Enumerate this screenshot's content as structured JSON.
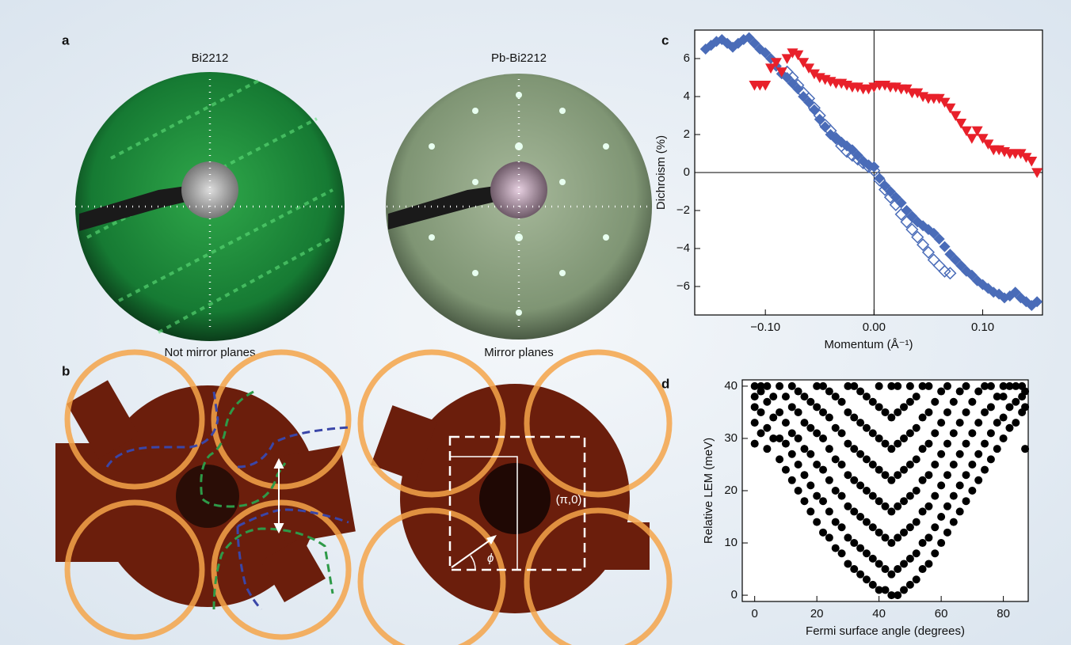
{
  "panels": {
    "a": {
      "label": "a",
      "left_title": "Bi2212",
      "right_title": "Pb-Bi2212",
      "left_caption": "Not mirror planes",
      "right_caption": "Mirror planes"
    },
    "b": {
      "label": "b",
      "point_label": "(π,0)",
      "angle_label": "ϕ"
    },
    "c": {
      "label": "c"
    },
    "d": {
      "label": "d"
    }
  },
  "chart_data": [
    {
      "type": "scatter",
      "x_label": "Momentum (Å⁻¹)",
      "y_label": "Dichroism (%)",
      "xlim": [
        -0.165,
        0.155
      ],
      "ylim": [
        -7.5,
        7.5
      ],
      "xticks": [
        {
          "value": -0.1,
          "label": "−0.10"
        },
        {
          "value": 0,
          "label": "0.00"
        },
        {
          "value": 0.1,
          "label": "0.10"
        }
      ],
      "yticks": [
        {
          "value": -6,
          "label": "−6"
        },
        {
          "value": -4,
          "label": "−4"
        },
        {
          "value": -2,
          "label": "−2"
        },
        0,
        2,
        4,
        6
      ],
      "zero_lines": true,
      "series": [
        {
          "color": "#4a6cb8",
          "marker": "diamond",
          "x": [
            -0.155,
            -0.15,
            -0.145,
            -0.14,
            -0.135,
            -0.13,
            -0.125,
            -0.12,
            -0.115,
            -0.11,
            -0.105,
            -0.1,
            -0.095,
            -0.09,
            -0.085,
            -0.08,
            -0.075,
            -0.07,
            -0.065,
            -0.06,
            -0.055,
            -0.05,
            -0.045,
            -0.04,
            -0.035,
            -0.03,
            -0.025,
            -0.02,
            -0.015,
            -0.01,
            -0.005,
            0,
            0.005,
            0.01,
            0.015,
            0.02,
            0.025,
            0.03,
            0.035,
            0.04,
            0.045,
            0.05,
            0.055,
            0.06,
            0.065,
            0.07,
            0.075,
            0.08,
            0.085,
            0.09,
            0.095,
            0.1,
            0.105,
            0.11,
            0.115,
            0.12,
            0.125,
            0.13,
            0.135,
            0.14,
            0.145,
            0.15
          ],
          "values": [
            6.5,
            6.7,
            6.9,
            7.0,
            6.8,
            6.6,
            6.8,
            7.0,
            7.1,
            6.8,
            6.5,
            6.3,
            6.0,
            5.6,
            5.2,
            5.0,
            4.7,
            4.4,
            4.0,
            3.7,
            3.3,
            2.8,
            2.4,
            2.0,
            1.8,
            1.6,
            1.4,
            1.2,
            0.9,
            0.6,
            0.4,
            0.3,
            -0.3,
            -0.7,
            -1.0,
            -1.3,
            -1.6,
            -2.0,
            -2.3,
            -2.6,
            -2.8,
            -3.0,
            -3.2,
            -3.5,
            -3.9,
            -4.3,
            -4.6,
            -4.9,
            -5.2,
            -5.4,
            -5.7,
            -5.9,
            -6.1,
            -6.3,
            -6.4,
            -6.6,
            -6.5,
            -6.3,
            -6.6,
            -6.8,
            -7.0,
            -6.8
          ]
        },
        {
          "color": "#4a6cb8",
          "marker": "diamond-open",
          "x": [
            -0.08,
            -0.075,
            -0.07,
            -0.065,
            -0.06,
            -0.055,
            -0.05,
            -0.045,
            -0.04,
            -0.035,
            -0.03,
            -0.025,
            -0.02,
            -0.015,
            -0.01,
            -0.005,
            0,
            0.005,
            0.01,
            0.015,
            0.02,
            0.025,
            0.03,
            0.035,
            0.04,
            0.045,
            0.05,
            0.055,
            0.06,
            0.065,
            0.07
          ],
          "values": [
            5.3,
            5.0,
            4.6,
            4.2,
            3.9,
            3.4,
            3.0,
            2.5,
            2.2,
            1.8,
            1.4,
            1.1,
            0.9,
            0.7,
            0.5,
            0.3,
            0.1,
            -0.4,
            -0.9,
            -1.3,
            -1.7,
            -2.2,
            -2.6,
            -3.0,
            -3.4,
            -3.8,
            -4.2,
            -4.6,
            -4.9,
            -5.2,
            -5.3
          ]
        },
        {
          "color": "#e8202a",
          "marker": "triangle-down",
          "x": [
            -0.11,
            -0.105,
            -0.1,
            -0.095,
            -0.09,
            -0.085,
            -0.08,
            -0.075,
            -0.07,
            -0.065,
            -0.06,
            -0.055,
            -0.05,
            -0.045,
            -0.04,
            -0.035,
            -0.03,
            -0.025,
            -0.02,
            -0.015,
            -0.01,
            -0.005,
            0,
            0.005,
            0.01,
            0.015,
            0.02,
            0.025,
            0.03,
            0.035,
            0.04,
            0.045,
            0.05,
            0.055,
            0.06,
            0.065,
            0.07,
            0.075,
            0.08,
            0.085,
            0.09,
            0.095,
            0.1,
            0.105,
            0.11,
            0.115,
            0.12,
            0.125,
            0.13,
            0.135,
            0.14,
            0.145,
            0.15
          ],
          "values": [
            4.6,
            4.6,
            4.6,
            5.5,
            5.8,
            5.3,
            6.0,
            6.3,
            6.2,
            5.8,
            5.5,
            5.2,
            5.0,
            4.9,
            4.8,
            4.7,
            4.7,
            4.6,
            4.5,
            4.5,
            4.4,
            4.4,
            4.5,
            4.6,
            4.6,
            4.5,
            4.5,
            4.4,
            4.4,
            4.2,
            4.2,
            4.0,
            3.9,
            3.9,
            3.9,
            3.7,
            3.4,
            3.0,
            2.6,
            2.2,
            1.8,
            2.2,
            1.8,
            1.5,
            1.2,
            1.2,
            1.1,
            1.0,
            1.0,
            1.0,
            0.8,
            0.6,
            0.0
          ]
        }
      ]
    },
    {
      "type": "scatter",
      "x_label": "Fermi surface angle (degrees)",
      "y_label": "Relative LEM (meV)",
      "xlim": [
        -4,
        88
      ],
      "ylim": [
        -1.2,
        41.2
      ],
      "xticks": [
        0,
        20,
        40,
        60,
        80
      ],
      "yticks": [
        0,
        10,
        20,
        30,
        40
      ],
      "color": "#000000",
      "marker": "circle",
      "x": [
        0,
        0,
        0,
        0,
        0,
        2,
        2,
        2,
        2,
        4,
        4,
        4,
        4,
        6,
        6,
        6,
        8,
        8,
        8,
        8,
        10,
        10,
        10,
        10,
        12,
        12,
        12,
        12,
        12,
        14,
        14,
        14,
        14,
        14,
        16,
        16,
        16,
        16,
        16,
        18,
        18,
        18,
        18,
        18,
        20,
        20,
        20,
        20,
        20,
        20,
        22,
        22,
        22,
        22,
        22,
        22,
        24,
        24,
        24,
        24,
        24,
        24,
        26,
        26,
        26,
        26,
        26,
        26,
        28,
        28,
        28,
        28,
        28,
        28,
        30,
        30,
        30,
        30,
        30,
        30,
        30,
        32,
        32,
        32,
        32,
        32,
        32,
        32,
        34,
        34,
        34,
        34,
        34,
        34,
        34,
        36,
        36,
        36,
        36,
        36,
        36,
        36,
        38,
        38,
        38,
        38,
        38,
        38,
        38,
        40,
        40,
        40,
        40,
        40,
        40,
        40,
        40,
        42,
        42,
        42,
        42,
        42,
        42,
        42,
        44,
        44,
        44,
        44,
        44,
        44,
        44,
        44,
        46,
        46,
        46,
        46,
        46,
        46,
        46,
        46,
        48,
        48,
        48,
        48,
        48,
        48,
        48,
        50,
        50,
        50,
        50,
        50,
        50,
        50,
        50,
        52,
        52,
        52,
        52,
        52,
        52,
        52,
        54,
        54,
        54,
        54,
        54,
        54,
        54,
        56,
        56,
        56,
        56,
        56,
        56,
        56,
        58,
        58,
        58,
        58,
        58,
        58,
        60,
        60,
        60,
        60,
        60,
        60,
        62,
        62,
        62,
        62,
        62,
        62,
        64,
        64,
        64,
        64,
        64,
        66,
        66,
        66,
        66,
        66,
        68,
        68,
        68,
        68,
        68,
        70,
        70,
        70,
        70,
        72,
        72,
        72,
        72,
        74,
        74,
        74,
        74,
        76,
        76,
        76,
        76,
        78,
        78,
        78,
        80,
        80,
        80,
        80,
        82,
        82,
        82,
        84,
        84,
        84,
        86,
        86,
        86,
        87,
        87,
        87
      ],
      "values": [
        29,
        33,
        36,
        38,
        40,
        31,
        35,
        39,
        40,
        28,
        32,
        37,
        40,
        30,
        34,
        38,
        26,
        30,
        35,
        40,
        24,
        29,
        33,
        38,
        22,
        27,
        31,
        36,
        40,
        20,
        25,
        30,
        35,
        39,
        18,
        23,
        28,
        33,
        38,
        16,
        21,
        27,
        32,
        37,
        14,
        19,
        25,
        31,
        36,
        40,
        12,
        18,
        24,
        30,
        35,
        40,
        11,
        16,
        22,
        28,
        34,
        39,
        9,
        14,
        20,
        26,
        32,
        38,
        8,
        13,
        19,
        25,
        31,
        37,
        6,
        11,
        17,
        23,
        29,
        35,
        40,
        5,
        10,
        16,
        22,
        28,
        34,
        40,
        4,
        9,
        15,
        21,
        27,
        33,
        39,
        3,
        8,
        14,
        20,
        26,
        32,
        38,
        2,
        7,
        13,
        19,
        25,
        31,
        37,
        1,
        6,
        12,
        18,
        24,
        30,
        36,
        40,
        1,
        5,
        11,
        17,
        23,
        29,
        35,
        0,
        4,
        10,
        16,
        22,
        28,
        34,
        40,
        0,
        5,
        11,
        17,
        23,
        29,
        35,
        40,
        1,
        6,
        12,
        18,
        24,
        30,
        36,
        2,
        7,
        13,
        19,
        25,
        31,
        37,
        40,
        3,
        8,
        14,
        20,
        26,
        32,
        38,
        5,
        10,
        16,
        22,
        28,
        34,
        40,
        6,
        11,
        17,
        23,
        29,
        35,
        40,
        8,
        13,
        19,
        25,
        31,
        37,
        10,
        15,
        21,
        27,
        33,
        39,
        12,
        17,
        23,
        29,
        35,
        40,
        14,
        19,
        25,
        31,
        37,
        16,
        21,
        27,
        33,
        39,
        18,
        23,
        29,
        35,
        40,
        20,
        25,
        31,
        37,
        22,
        27,
        33,
        39,
        24,
        29,
        35,
        40,
        26,
        31,
        36,
        40,
        28,
        33,
        38,
        30,
        34,
        38,
        40,
        32,
        36,
        40,
        33,
        37,
        40,
        35,
        38,
        40,
        28,
        36,
        39
      ]
    }
  ]
}
